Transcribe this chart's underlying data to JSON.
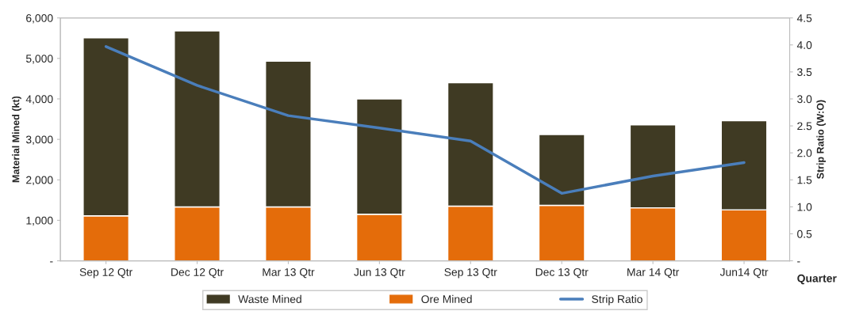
{
  "chart_data": {
    "type": "bar",
    "stacked": true,
    "categories": [
      "Sep 12 Qtr",
      "Dec 12 Qtr",
      "Mar 13 Qtr",
      "Jun 13 Qtr",
      "Sep 13 Qtr",
      "Dec 13 Qtr",
      "Mar 14 Qtr",
      "Jun14 Qtr"
    ],
    "xlabel": "Quarter",
    "ylabel": "Material Mined (kt)",
    "y2label": "Strip Ratio (W:O)",
    "series": [
      {
        "name": "Ore Mined",
        "color": "#e46c0a",
        "values": [
          1110,
          1330,
          1330,
          1150,
          1350,
          1370,
          1310,
          1260
        ]
      },
      {
        "name": "Waste Mined",
        "color": "#3f3a23",
        "values": [
          4400,
          4350,
          3600,
          2850,
          3050,
          1750,
          2050,
          2200
        ]
      },
      {
        "name": "Strip Ratio",
        "type": "line",
        "axis": "y2",
        "color": "#4a7ebb",
        "values": [
          3.97,
          3.25,
          2.69,
          2.46,
          2.22,
          1.25,
          1.57,
          1.82
        ]
      }
    ],
    "ylim": [
      0,
      6000
    ],
    "yticks": [
      {
        "value": 0,
        "label": "-"
      },
      {
        "value": 1000,
        "label": "1,000"
      },
      {
        "value": 2000,
        "label": "2,000"
      },
      {
        "value": 3000,
        "label": "3,000"
      },
      {
        "value": 4000,
        "label": "4,000"
      },
      {
        "value": 5000,
        "label": "5,000"
      },
      {
        "value": 6000,
        "label": "6,000"
      }
    ],
    "y2lim": [
      0,
      4.5
    ],
    "y2ticks": [
      {
        "value": 0,
        "label": "-"
      },
      0.5,
      {
        "value": 1,
        "label": "1.0"
      },
      1.5,
      {
        "value": 2,
        "label": "2.0"
      },
      2.5,
      {
        "value": 3,
        "label": "3.0"
      },
      3.5,
      {
        "value": 4,
        "label": "4.0"
      },
      4.5
    ],
    "grid": false,
    "legend": "bottom",
    "marker": "none"
  }
}
